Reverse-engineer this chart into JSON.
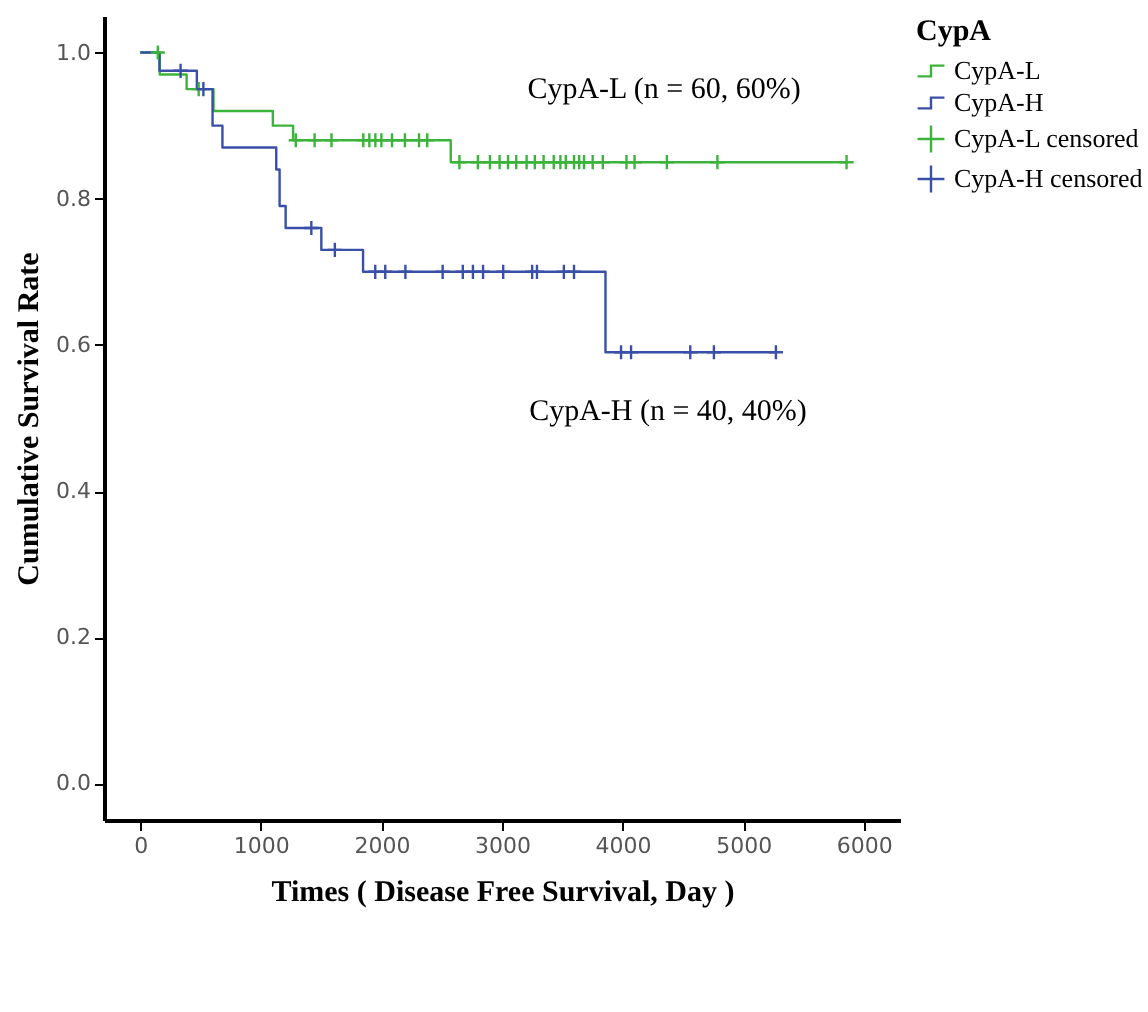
{
  "chart_data": {
    "type": "step",
    "xlabel": "Times ( Disease Free Survival, Day )",
    "ylabel": "Cumulative Survival Rate",
    "legend_title": "CypA",
    "legend": "top right",
    "grid": false,
    "xlim": [
      -300,
      6300
    ],
    "xticks": [
      0,
      1000,
      2000,
      3000,
      4000,
      5000,
      6000
    ],
    "ylim": [
      -0.05,
      1.05
    ],
    "yticks": [
      {
        "value": 0,
        "label": "0.0"
      },
      0.2,
      0.4,
      0.6,
      0.8,
      {
        "value": 1,
        "label": "1.0"
      }
    ],
    "series": [
      {
        "name": "CypA-L",
        "type": "step",
        "color": "#3cb43c",
        "x": [
          0,
          162,
          385,
          608,
          1100,
          1268,
          2575,
          5857
        ],
        "values": [
          1,
          0.97,
          0.95,
          0.92,
          0.9,
          0.88,
          0.85,
          0.85
        ]
      },
      {
        "name": "CypA-H",
        "type": "step",
        "color": "#3a4fa8",
        "x": [
          0,
          160,
          470,
          600,
          682,
          1128,
          1156,
          1206,
          1502,
          1848,
          3858,
          5271
        ],
        "values": [
          1,
          0.975,
          0.95,
          0.9,
          0.87,
          0.84,
          0.79,
          0.76,
          0.73,
          0.7,
          0.59,
          0.59
        ]
      },
      {
        "name": "CypA-L censored",
        "type": "scatter",
        "marker": "cross",
        "color": "#3cb43c",
        "x": [
          146,
          485,
          1290,
          1446,
          1586,
          1850,
          1900,
          1950,
          2000,
          2088,
          2195,
          2312,
          2380,
          2647,
          2800,
          2900,
          2980,
          3050,
          3118,
          3204,
          3272,
          3345,
          3429,
          3484,
          3529,
          3597,
          3640,
          3680,
          3752,
          3836,
          4032,
          4099,
          4367,
          4786,
          5857
        ],
        "values": [
          1,
          0.95,
          0.88,
          0.88,
          0.88,
          0.88,
          0.88,
          0.88,
          0.88,
          0.88,
          0.88,
          0.88,
          0.88,
          0.85,
          0.85,
          0.85,
          0.85,
          0.85,
          0.85,
          0.85,
          0.85,
          0.85,
          0.85,
          0.85,
          0.85,
          0.85,
          0.85,
          0.85,
          0.85,
          0.85,
          0.85,
          0.85,
          0.85,
          0.85,
          0.85
        ]
      },
      {
        "name": "CypA-H censored",
        "type": "scatter",
        "marker": "cross",
        "color": "#3a4fa8",
        "x": [
          335,
          524,
          1419,
          1614,
          1949,
          2032,
          2199,
          2508,
          2675,
          2759,
          2843,
          3010,
          3250,
          3290,
          3513,
          3597,
          3987,
          4070,
          4561,
          4757,
          5271
        ],
        "values": [
          0.975,
          0.95,
          0.76,
          0.73,
          0.7,
          0.7,
          0.7,
          0.7,
          0.7,
          0.7,
          0.7,
          0.7,
          0.7,
          0.7,
          0.7,
          0.7,
          0.59,
          0.59,
          0.59,
          0.59,
          0.59
        ]
      }
    ],
    "annotations": [
      "CypA-L (n = 60, 60%)",
      "CypA-H (n = 40, 40%)"
    ]
  }
}
